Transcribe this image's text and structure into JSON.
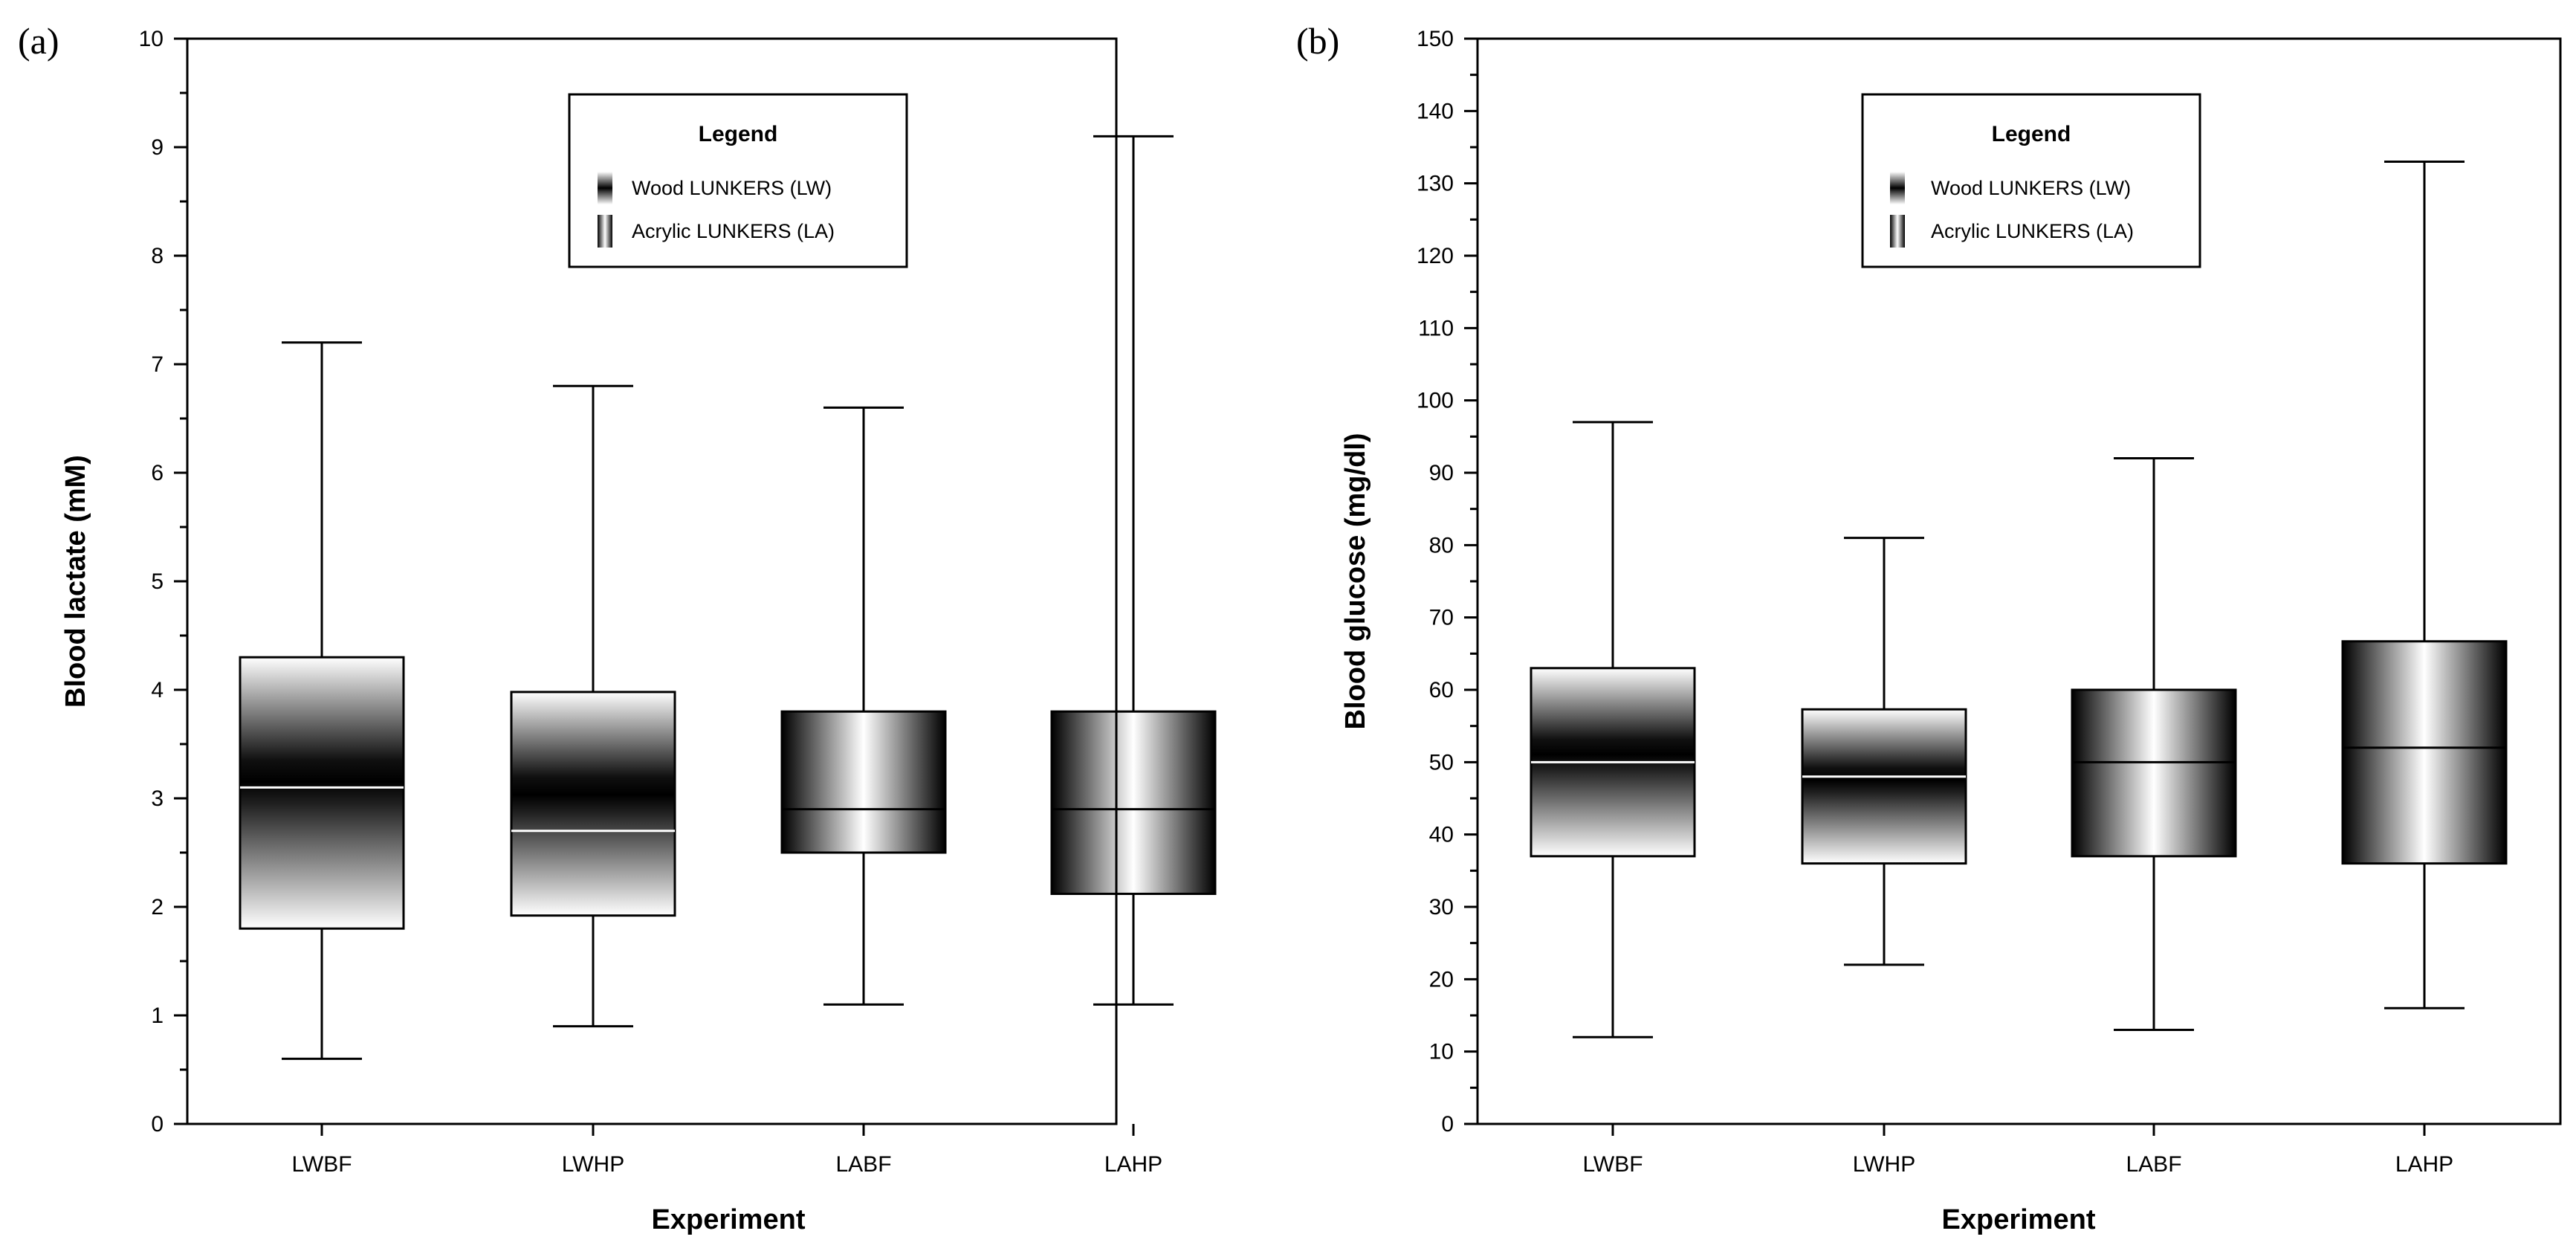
{
  "chart_data": [
    {
      "type": "box",
      "panel_label": "(a)",
      "title": "",
      "xlabel": "Experiment",
      "ylabel": "Blood lactate (mM)",
      "ylim": [
        0,
        10
      ],
      "yticks": [
        0,
        1,
        2,
        3,
        4,
        5,
        6,
        7,
        8,
        9,
        10
      ],
      "categories": [
        "LWBF",
        "LWHP",
        "LABF",
        "LAHP"
      ],
      "series": [
        {
          "name": "Wood LUNKERS (LW)",
          "fill": "vertical-gradient",
          "boxes": [
            {
              "category": "LWBF",
              "min": 0.6,
              "q1": 1.8,
              "median": 3.1,
              "q3": 4.3,
              "max": 7.2
            },
            {
              "category": "LWHP",
              "min": 0.9,
              "q1": 1.92,
              "median": 2.7,
              "q3": 3.98,
              "max": 6.8
            }
          ]
        },
        {
          "name": "Acrylic LUNKERS (LA)",
          "fill": "horizontal-gradient",
          "boxes": [
            {
              "category": "LABF",
              "min": 1.1,
              "q1": 2.5,
              "median": 2.9,
              "q3": 3.8,
              "max": 6.6
            },
            {
              "category": "LAHP",
              "min": 1.1,
              "q1": 2.12,
              "median": 2.9,
              "q3": 3.8,
              "max": 9.1
            }
          ]
        }
      ],
      "legend": {
        "title": "Legend",
        "position": "top-center",
        "items": [
          {
            "label": "Wood LUNKERS (LW)",
            "fill": "vertical-gradient"
          },
          {
            "label": "Acrylic LUNKERS (LA)",
            "fill": "horizontal-gradient"
          }
        ]
      }
    },
    {
      "type": "box",
      "panel_label": "(b)",
      "title": "",
      "xlabel": "Experiment",
      "ylabel": "Blood glucose (mg/dl)",
      "ylim": [
        0,
        150
      ],
      "yticks": [
        0,
        10,
        20,
        30,
        40,
        50,
        60,
        70,
        80,
        90,
        100,
        110,
        120,
        130,
        140,
        150
      ],
      "categories": [
        "LWBF",
        "LWHP",
        "LABF",
        "LAHP"
      ],
      "series": [
        {
          "name": "Wood LUNKERS (LW)",
          "fill": "vertical-gradient",
          "boxes": [
            {
              "category": "LWBF",
              "min": 12,
              "q1": 37,
              "median": 50,
              "q3": 63,
              "max": 97
            },
            {
              "category": "LWHP",
              "min": 22,
              "q1": 36,
              "median": 48,
              "q3": 57.3,
              "max": 81
            }
          ]
        },
        {
          "name": "Acrylic LUNKERS (LA)",
          "fill": "horizontal-gradient",
          "boxes": [
            {
              "category": "LABF",
              "min": 13,
              "q1": 37,
              "median": 50,
              "q3": 60,
              "max": 92
            },
            {
              "category": "LAHP",
              "min": 16,
              "q1": 36,
              "median": 52,
              "q3": 66.7,
              "max": 133
            }
          ]
        }
      ],
      "legend": {
        "title": "Legend",
        "position": "top-center",
        "items": [
          {
            "label": "Wood LUNKERS (LW)",
            "fill": "vertical-gradient"
          },
          {
            "label": "Acrylic LUNKERS (LA)",
            "fill": "horizontal-gradient"
          }
        ]
      }
    }
  ]
}
